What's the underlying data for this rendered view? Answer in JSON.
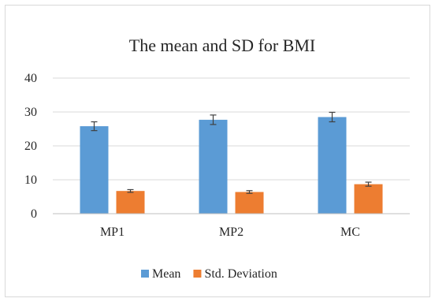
{
  "chart_data": {
    "type": "bar",
    "title": "The mean and SD for BMI",
    "categories": [
      "MP1",
      "MP2",
      "MC"
    ],
    "series": [
      {
        "name": "Mean",
        "values": [
          25.8,
          27.7,
          28.5
        ],
        "errors": [
          1.3,
          1.4,
          1.4
        ],
        "color": "#5b9bd5"
      },
      {
        "name": "Std. Deviation",
        "values": [
          6.7,
          6.4,
          8.7
        ],
        "errors": [
          0.4,
          0.4,
          0.6
        ],
        "color": "#ed7d31"
      }
    ],
    "ylim": [
      0,
      40
    ],
    "yticks": [
      0,
      10,
      20,
      30,
      40
    ],
    "xlabel": "",
    "ylabel": "",
    "grid": true,
    "legend_position": "bottom"
  }
}
